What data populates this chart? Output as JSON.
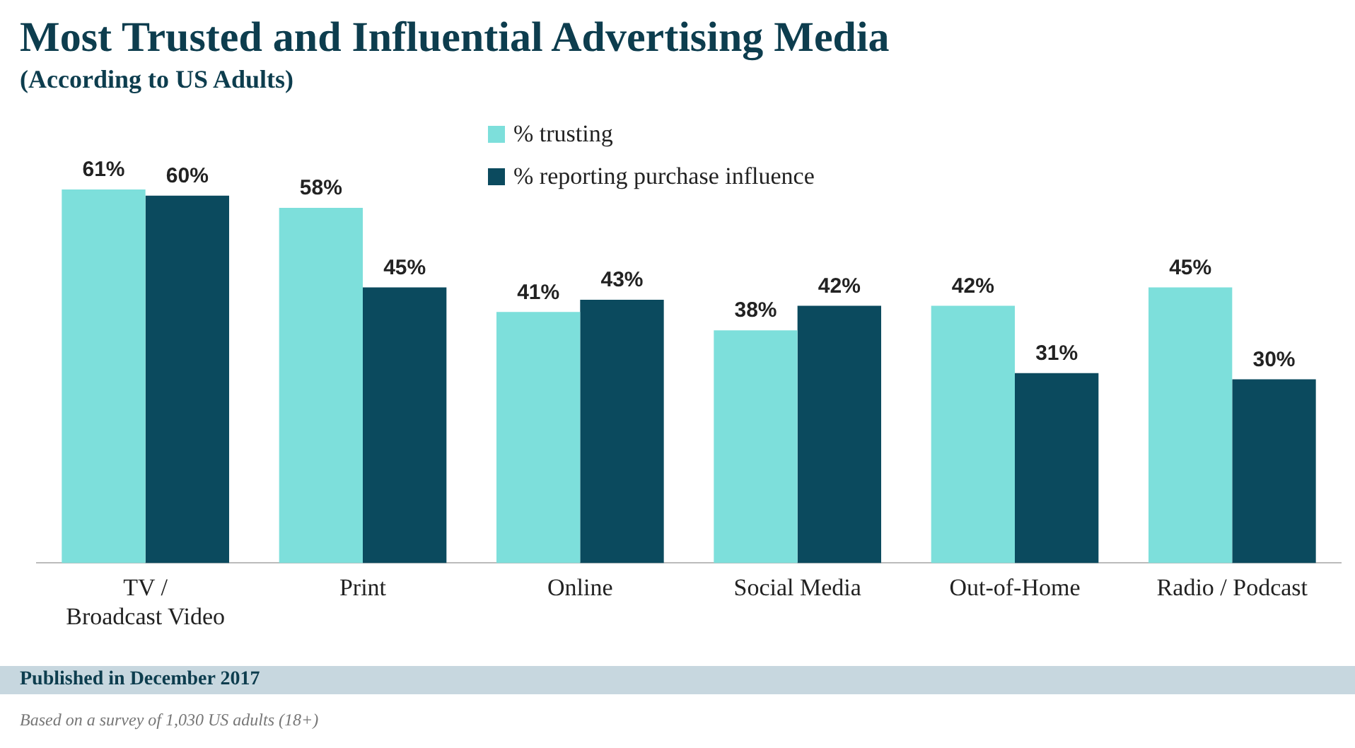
{
  "chart_data": {
    "type": "bar",
    "title": "Most Trusted and Influential Advertising Media",
    "subtitle": "(According to US Adults)",
    "categories": [
      "TV / Broadcast Video",
      "Print",
      "Online",
      "Social Media",
      "Out-of-Home",
      "Radio / Podcast"
    ],
    "series": [
      {
        "name": "% trusting",
        "color": "#7ddfdb",
        "values": [
          61,
          58,
          41,
          38,
          42,
          45
        ],
        "value_labels": [
          "61%",
          "58%",
          "41%",
          "38%",
          "42%",
          "45%"
        ]
      },
      {
        "name": "% reporting purchase influence",
        "color": "#0b4a5e",
        "values": [
          60,
          45,
          43,
          42,
          31,
          30
        ],
        "value_labels": [
          "60%",
          "45%",
          "43%",
          "42%",
          "31%",
          "30%"
        ]
      }
    ],
    "legend": "top",
    "grid": false,
    "annotations": [
      "Published in December 2017",
      "Based on a survey of 1,030 US adults (18+)"
    ]
  }
}
